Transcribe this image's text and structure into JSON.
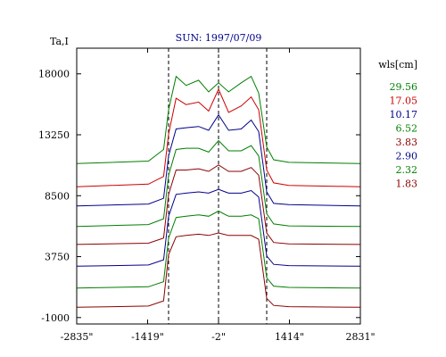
{
  "chart_data": {
    "type": "line",
    "title": "SUN: 1997/07/09",
    "ylabel": "Ta,I",
    "xlabel": "",
    "xlim": [
      -2835,
      2831
    ],
    "ylim": [
      -1500,
      20000
    ],
    "x_ticks": [
      -2835,
      -1419,
      -2,
      1414,
      2831
    ],
    "x_tick_labels": [
      "-2835\"",
      "-1419\"",
      "-2\"",
      "1414\"",
      "2831\""
    ],
    "y_ticks": [
      18000,
      13250,
      8500,
      3750,
      -1000
    ],
    "y_tick_labels": [
      "18000",
      "13250",
      "8500",
      "3750",
      "-1000"
    ],
    "grid": false,
    "dashed_lines_x": [
      -1000,
      -2,
      960
    ],
    "legend": {
      "title": "wls[cm]",
      "position": "right",
      "entries": [
        "29.56",
        "17.05",
        "10.17",
        "6.52",
        "3.83",
        "2.90",
        "2.32",
        "1.83"
      ]
    },
    "series": [
      {
        "name": "29.56",
        "color": "#007f00",
        "baseline": 11000,
        "disk": 17100,
        "x": [
          -2835,
          -1400,
          -1100,
          -1000,
          -850,
          -650,
          -400,
          -200,
          -2,
          200,
          450,
          650,
          800,
          960,
          1100,
          1400,
          2831
        ],
        "y": [
          11000,
          11200,
          12100,
          15200,
          17800,
          17100,
          17500,
          16600,
          17300,
          16600,
          17300,
          17800,
          16500,
          12300,
          11300,
          11100,
          11000
        ]
      },
      {
        "name": "17.05",
        "color": "#cc0000",
        "baseline": 9200,
        "disk": 15600,
        "x": [
          -2835,
          -1400,
          -1100,
          -1000,
          -850,
          -650,
          -400,
          -200,
          -2,
          200,
          450,
          650,
          800,
          960,
          1100,
          1400,
          2831
        ],
        "y": [
          9200,
          9400,
          10000,
          13300,
          16100,
          15600,
          15800,
          15100,
          16800,
          15000,
          15500,
          16200,
          15200,
          10500,
          9500,
          9300,
          9200
        ]
      },
      {
        "name": "10.17",
        "color": "#00008b",
        "baseline": 7700,
        "disk": 13800,
        "x": [
          -2835,
          -1400,
          -1100,
          -1000,
          -850,
          -650,
          -400,
          -200,
          -2,
          200,
          450,
          650,
          800,
          960,
          1100,
          1400,
          2831
        ],
        "y": [
          7700,
          7850,
          8300,
          11600,
          13700,
          13800,
          13900,
          13600,
          14800,
          13600,
          13700,
          14400,
          13500,
          8800,
          7900,
          7800,
          7700
        ]
      },
      {
        "name": "6.52",
        "color": "#007f00",
        "baseline": 6100,
        "disk": 12000,
        "x": [
          -2835,
          -1400,
          -1100,
          -1000,
          -850,
          -650,
          -400,
          -200,
          -2,
          200,
          450,
          650,
          800,
          960,
          1100,
          1400,
          2831
        ],
        "y": [
          6100,
          6250,
          6700,
          10100,
          12100,
          12200,
          12200,
          11900,
          12800,
          12000,
          12000,
          12400,
          11600,
          7100,
          6300,
          6150,
          6100
        ]
      },
      {
        "name": "3.83",
        "color": "#8b0000",
        "baseline": 4700,
        "disk": 10400,
        "x": [
          -2835,
          -1400,
          -1100,
          -1000,
          -850,
          -650,
          -400,
          -200,
          -2,
          200,
          450,
          650,
          800,
          960,
          1100,
          1400,
          2831
        ],
        "y": [
          4700,
          4800,
          5200,
          8600,
          10500,
          10500,
          10600,
          10400,
          10900,
          10400,
          10400,
          10700,
          10100,
          5600,
          4850,
          4750,
          4700
        ]
      },
      {
        "name": "2.90",
        "color": "#00008b",
        "baseline": 3000,
        "disk": 8700,
        "x": [
          -2835,
          -1400,
          -1100,
          -1000,
          -850,
          -650,
          -400,
          -200,
          -2,
          200,
          450,
          650,
          800,
          960,
          1100,
          1400,
          2831
        ],
        "y": [
          3000,
          3100,
          3500,
          6900,
          8600,
          8700,
          8800,
          8700,
          9000,
          8700,
          8700,
          8900,
          8400,
          3800,
          3150,
          3050,
          3000
        ]
      },
      {
        "name": "2.32",
        "color": "#007f00",
        "baseline": 1300,
        "disk": 6900,
        "x": [
          -2835,
          -1400,
          -1100,
          -1000,
          -850,
          -650,
          -400,
          -200,
          -2,
          200,
          450,
          650,
          800,
          960,
          1100,
          1400,
          2831
        ],
        "y": [
          1300,
          1400,
          1800,
          5200,
          6800,
          6900,
          7000,
          6900,
          7300,
          6900,
          6900,
          7000,
          6700,
          2100,
          1450,
          1350,
          1300
        ]
      },
      {
        "name": "1.83",
        "color": "#8b0000",
        "baseline": -200,
        "disk": 5500,
        "x": [
          -2835,
          -1400,
          -1100,
          -1000,
          -850,
          -650,
          -400,
          -200,
          -2,
          200,
          450,
          650,
          800,
          960,
          1100,
          1400,
          2831
        ],
        "y": [
          -200,
          -100,
          300,
          3900,
          5300,
          5400,
          5500,
          5400,
          5600,
          5400,
          5400,
          5400,
          5100,
          500,
          -50,
          -150,
          -200
        ]
      }
    ]
  }
}
